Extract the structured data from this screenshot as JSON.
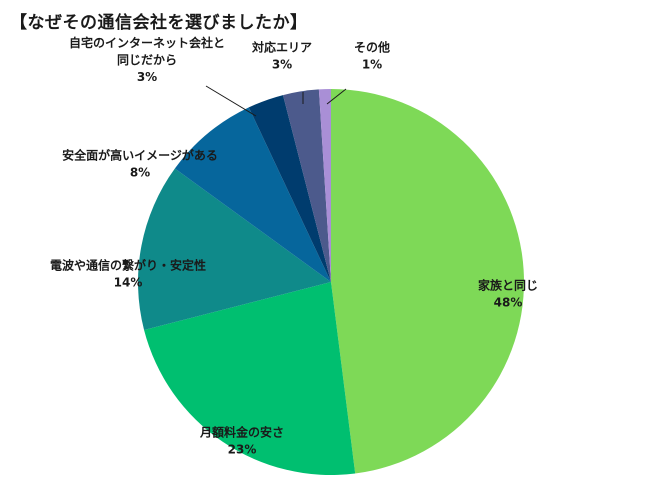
{
  "chart_data": {
    "type": "pie",
    "title": "【なぜその通信会社を選びましたか】",
    "slices": [
      {
        "label": "家族と同じ",
        "value_label": "48%",
        "value": 48,
        "color": "#7ed957"
      },
      {
        "label": "月額料金の安さ",
        "value_label": "23%",
        "value": 23,
        "color": "#00bf70"
      },
      {
        "label": "電波や通信の繋がり・安定性",
        "value_label": "14%",
        "value": 14,
        "color": "#0f8a8a"
      },
      {
        "label": "安全面が高いイメージがある",
        "value_label": "8%",
        "value": 8,
        "color": "#06669c"
      },
      {
        "label": "自宅のインターネット会社と同じだから",
        "label_lines": [
          "自宅のインターネット会社と",
          "同じだから"
        ],
        "value_label": "3%",
        "value": 3,
        "color": "#003c6e"
      },
      {
        "label": "対応エリア",
        "value_label": "3%",
        "value": 3,
        "color": "#4c5a8c"
      },
      {
        "label": "その他",
        "value_label": "1%",
        "value": 1,
        "color": "#a98fd6"
      }
    ]
  }
}
